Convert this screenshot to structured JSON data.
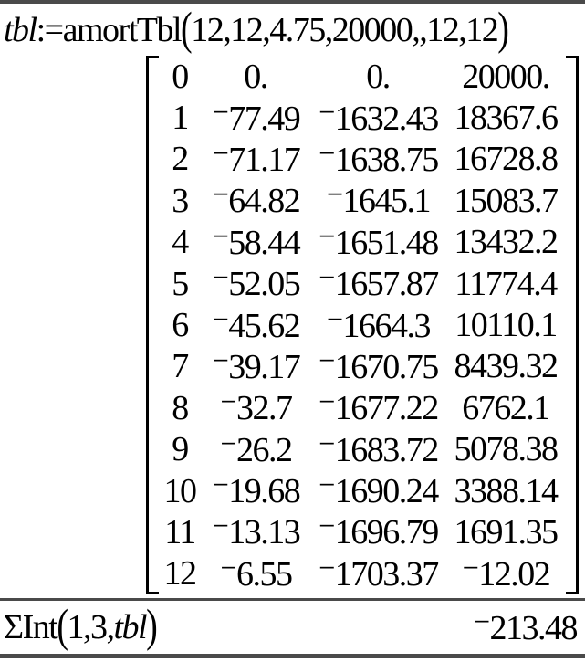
{
  "colors": {
    "background": "#ffffff",
    "text": "#000000",
    "divider": "#4a4a4a"
  },
  "entry1": {
    "variable": "tbl",
    "assign_op": ":=",
    "function": "amortTbl",
    "open_paren": "(",
    "args": "12,12,4.75,20000,,12,12",
    "close_paren": ")"
  },
  "matrix": {
    "rows": [
      [
        "0",
        "0.",
        "0.",
        "20000."
      ],
      [
        "1",
        "⁻77.49",
        "⁻1632.43",
        "18367.6"
      ],
      [
        "2",
        "⁻71.17",
        "⁻1638.75",
        "16728.8"
      ],
      [
        "3",
        "⁻64.82",
        "⁻1645.1",
        "15083.7"
      ],
      [
        "4",
        "⁻58.44",
        "⁻1651.48",
        "13432.2"
      ],
      [
        "5",
        "⁻52.05",
        "⁻1657.87",
        "11774.4"
      ],
      [
        "6",
        "⁻45.62",
        "⁻1664.3",
        "10110.1"
      ],
      [
        "7",
        "⁻39.17",
        "⁻1670.75",
        "8439.32"
      ],
      [
        "8",
        "⁻32.7",
        "⁻1677.22",
        "6762.1"
      ],
      [
        "9",
        "⁻26.2",
        "⁻1683.72",
        "5078.38"
      ],
      [
        "10",
        "⁻19.68",
        "⁻1690.24",
        "3388.14"
      ],
      [
        "11",
        "⁻13.13",
        "⁻1696.79",
        "1691.35"
      ],
      [
        "12",
        "⁻6.55",
        "⁻1703.37",
        "⁻12.02"
      ]
    ]
  },
  "entry2": {
    "function": "ΣInt",
    "open_paren": "(",
    "args": "1,3,",
    "variable": "tbl",
    "close_paren": ")",
    "result": "⁻213.48"
  }
}
